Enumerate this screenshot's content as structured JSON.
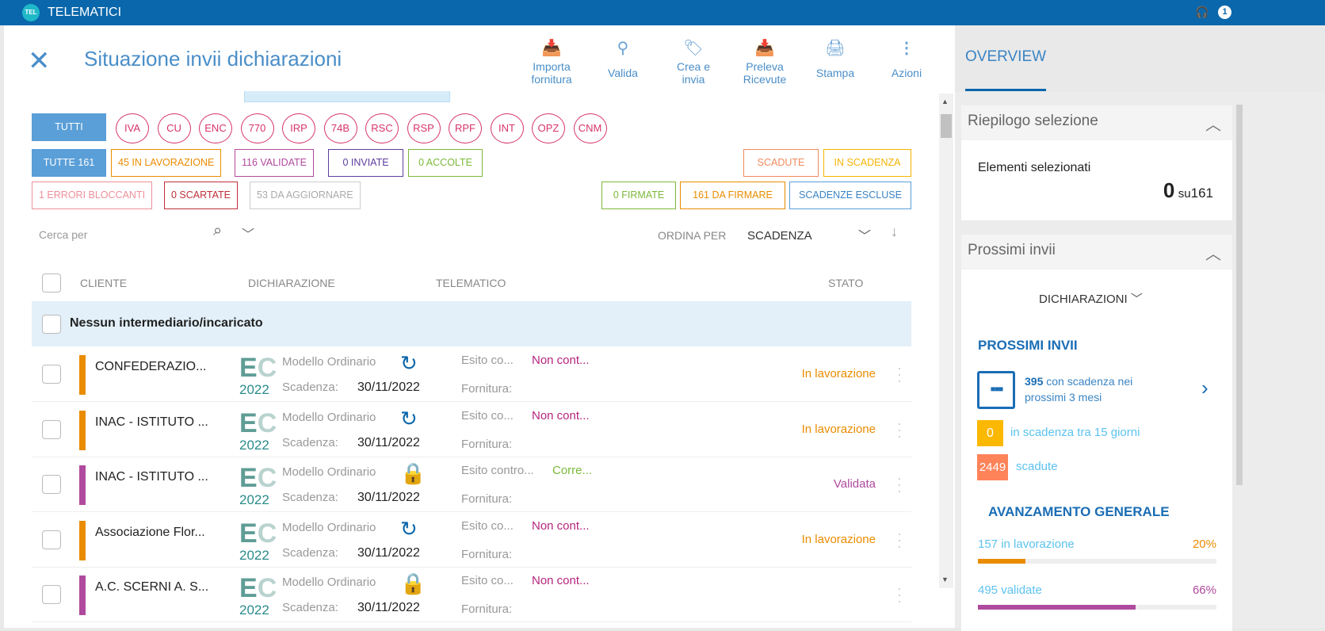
{
  "app": {
    "logo": "TEL",
    "title": "TELEMATICI",
    "notifications": "1"
  },
  "page": {
    "title": "Situazione invii dichiarazioni"
  },
  "toolbar": [
    {
      "label1": "Importa",
      "label2": "fornitura",
      "icon": "tray-download-icon"
    },
    {
      "label1": "Valida",
      "label2": "",
      "icon": "stamp-icon"
    },
    {
      "label1": "Crea e",
      "label2": "invia",
      "icon": "send-tag-icon"
    },
    {
      "label1": "Preleva",
      "label2": "Ricevute",
      "icon": "tray-download-icon"
    },
    {
      "label1": "Stampa",
      "label2": "",
      "icon": "printer-icon"
    },
    {
      "label1": "Azioni",
      "label2": "",
      "icon": "more-vertical-icon"
    }
  ],
  "types": {
    "all": "TUTTI",
    "items": [
      "IVA",
      "CU",
      "ENC",
      "770",
      "IRP",
      "74B",
      "RSC",
      "RSP",
      "RPF",
      "INT",
      "OPZ",
      "CNM"
    ]
  },
  "filters": {
    "tutte": "TUTTE 161",
    "lavorazione": "45 IN LAVORAZIONE",
    "validate": "116 VALIDATE",
    "inviate": "0 INVIATE",
    "accolte": "0 ACCOLTE",
    "scadute": "SCADUTE",
    "in_scadenza": "IN SCADENZA",
    "errori": "1 ERRORI BLOCCANTI",
    "scartate": "0 SCARTATE",
    "aggiornare": "53 DA AGGIORNARE",
    "firmate": "0 FIRMATE",
    "da_firmare": "161 DA FIRMARE",
    "escluse": "SCADENZE ESCLUSE"
  },
  "search": {
    "placeholder": "Cerca per",
    "sort_label": "ORDINA PER",
    "sort_value": "SCADENZA"
  },
  "table": {
    "headers": [
      "CLIENTE",
      "DICHIARAZIONE",
      "TELEMATICO",
      "STATO"
    ],
    "group": "Nessun intermediario/incaricato",
    "rows": [
      {
        "name": "CONFEDERAZIO...",
        "year": "2022",
        "model": "Modello Ordinario",
        "sc_label": "Scadenza:",
        "date": "30/11/2022",
        "esito": "Esito co...",
        "esito_val": "Non cont...",
        "fornitura": "Fornitura:",
        "stato": "In lavorazione",
        "color": "#ea8c00",
        "status_color": "#ea8c00",
        "esito_color": "#b5257e",
        "icon": "refresh"
      },
      {
        "name": "INAC - ISTITUTO ...",
        "year": "2022",
        "model": "Modello Ordinario",
        "sc_label": "Scadenza:",
        "date": "30/11/2022",
        "esito": "Esito co...",
        "esito_val": "Non cont...",
        "fornitura": "Fornitura:",
        "stato": "In lavorazione",
        "color": "#ea8c00",
        "status_color": "#ea8c00",
        "esito_color": "#b5257e",
        "icon": "refresh"
      },
      {
        "name": "INAC - ISTITUTO ...",
        "year": "2022",
        "model": "Modello Ordinario",
        "sc_label": "Scadenza:",
        "date": "30/11/2022",
        "esito": "Esito contro...",
        "esito_val": "Corre...",
        "fornitura": "Fornitura:",
        "stato": "Validata",
        "color": "#b04a9e",
        "status_color": "#b04a9e",
        "esito_color": "#7cb93a",
        "icon": "lock"
      },
      {
        "name": "Associazione Flor...",
        "year": "2022",
        "model": "Modello Ordinario",
        "sc_label": "Scadenza:",
        "date": "30/11/2022",
        "esito": "Esito co...",
        "esito_val": "Non cont...",
        "fornitura": "Fornitura:",
        "stato": "In lavorazione",
        "color": "#ea8c00",
        "status_color": "#ea8c00",
        "esito_color": "#b5257e",
        "icon": "refresh"
      },
      {
        "name": "A.C. SCERNI A. S...",
        "year": "2022",
        "model": "Modello Ordinario",
        "sc_label": "Scadenza:",
        "date": "30/11/2022",
        "esito": "Esito co...",
        "esito_val": "Non cont...",
        "fornitura": "Fornitura:",
        "stato": "",
        "color": "#b04a9e",
        "status_color": "#b04a9e",
        "esito_color": "#b5257e",
        "icon": "lock"
      }
    ]
  },
  "overview": {
    "tab": "OVERVIEW",
    "riepilogo": {
      "title": "Riepilogo selezione",
      "label": "Elementi selezionati",
      "selected": "0",
      "su": "su",
      "total": "161"
    },
    "prossimi": {
      "title": "Prossimi invii",
      "dropdown": "DICHIARAZIONI",
      "heading": "PROSSIMI INVII",
      "count": "395",
      "text1": "con scadenza nei",
      "text2": "prossimi 3 mesi",
      "in_scadenza": "0",
      "in_scadenza_text": "in scadenza tra 15 giorni",
      "scadute": "2449",
      "scadute_text": "scadute",
      "avanzamento": "AVANZAMENTO GENERALE",
      "progress": [
        {
          "label": "157 in lavorazione",
          "pct": "20%",
          "value": 20,
          "color": "#ea8c00"
        },
        {
          "label": "495 validate",
          "pct": "66%",
          "value": 66,
          "color": "#b04a9e"
        }
      ]
    }
  }
}
